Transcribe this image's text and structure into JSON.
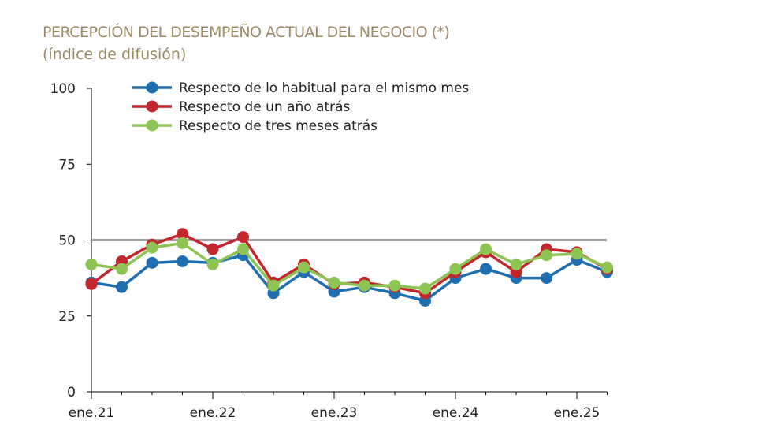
{
  "header": {
    "title": "PERCEPCIÓN DEL DESEMPEÑO ACTUAL DEL NEGOCIO (*)",
    "subtitle": "(índice de difusión)"
  },
  "chart_data": {
    "type": "line",
    "title": "PERCEPCIÓN DEL DESEMPEÑO ACTUAL DEL NEGOCIO (*)",
    "subtitle": "(índice de difusión)",
    "xlabel": "",
    "ylabel": "",
    "ylim": [
      0,
      100
    ],
    "yticks": [
      0,
      25,
      50,
      75,
      100
    ],
    "xtick_labels": [
      "ene.21",
      "ene.22",
      "ene.23",
      "ene.24",
      "ene.25"
    ],
    "x": [
      "ene.21",
      "abr.21",
      "jul.21",
      "oct.21",
      "ene.22",
      "abr.22",
      "jul.22",
      "oct.22",
      "ene.23",
      "abr.23",
      "jul.23",
      "oct.23",
      "ene.24",
      "abr.24",
      "jul.24",
      "oct.24",
      "ene.25",
      "abr.25"
    ],
    "reference_line": {
      "value": 50,
      "color": "#808080"
    },
    "legend_position": "top-left",
    "grid": false,
    "series": [
      {
        "name": "Respecto de lo habitual para el mismo mes",
        "color": "#1f6fb0",
        "values": [
          36,
          34.5,
          42.5,
          43,
          42.5,
          45,
          32.5,
          39.5,
          33,
          34.5,
          32.5,
          30,
          37.5,
          40.5,
          37.5,
          37.5,
          43.5,
          39.5
        ]
      },
      {
        "name": "Respecto de un año atrás",
        "color": "#c1272d",
        "values": [
          35.5,
          43,
          48.5,
          52,
          47,
          51,
          36,
          42,
          35.5,
          36,
          34.5,
          32.5,
          39.5,
          46,
          39.5,
          47,
          46,
          40.5
        ]
      },
      {
        "name": "Respecto de tres meses atrás",
        "color": "#8dc453",
        "values": [
          42,
          40.5,
          47.5,
          49,
          42,
          47,
          35,
          41,
          36,
          35,
          35,
          34,
          40.5,
          47,
          42,
          45,
          45.5,
          41
        ]
      }
    ]
  }
}
